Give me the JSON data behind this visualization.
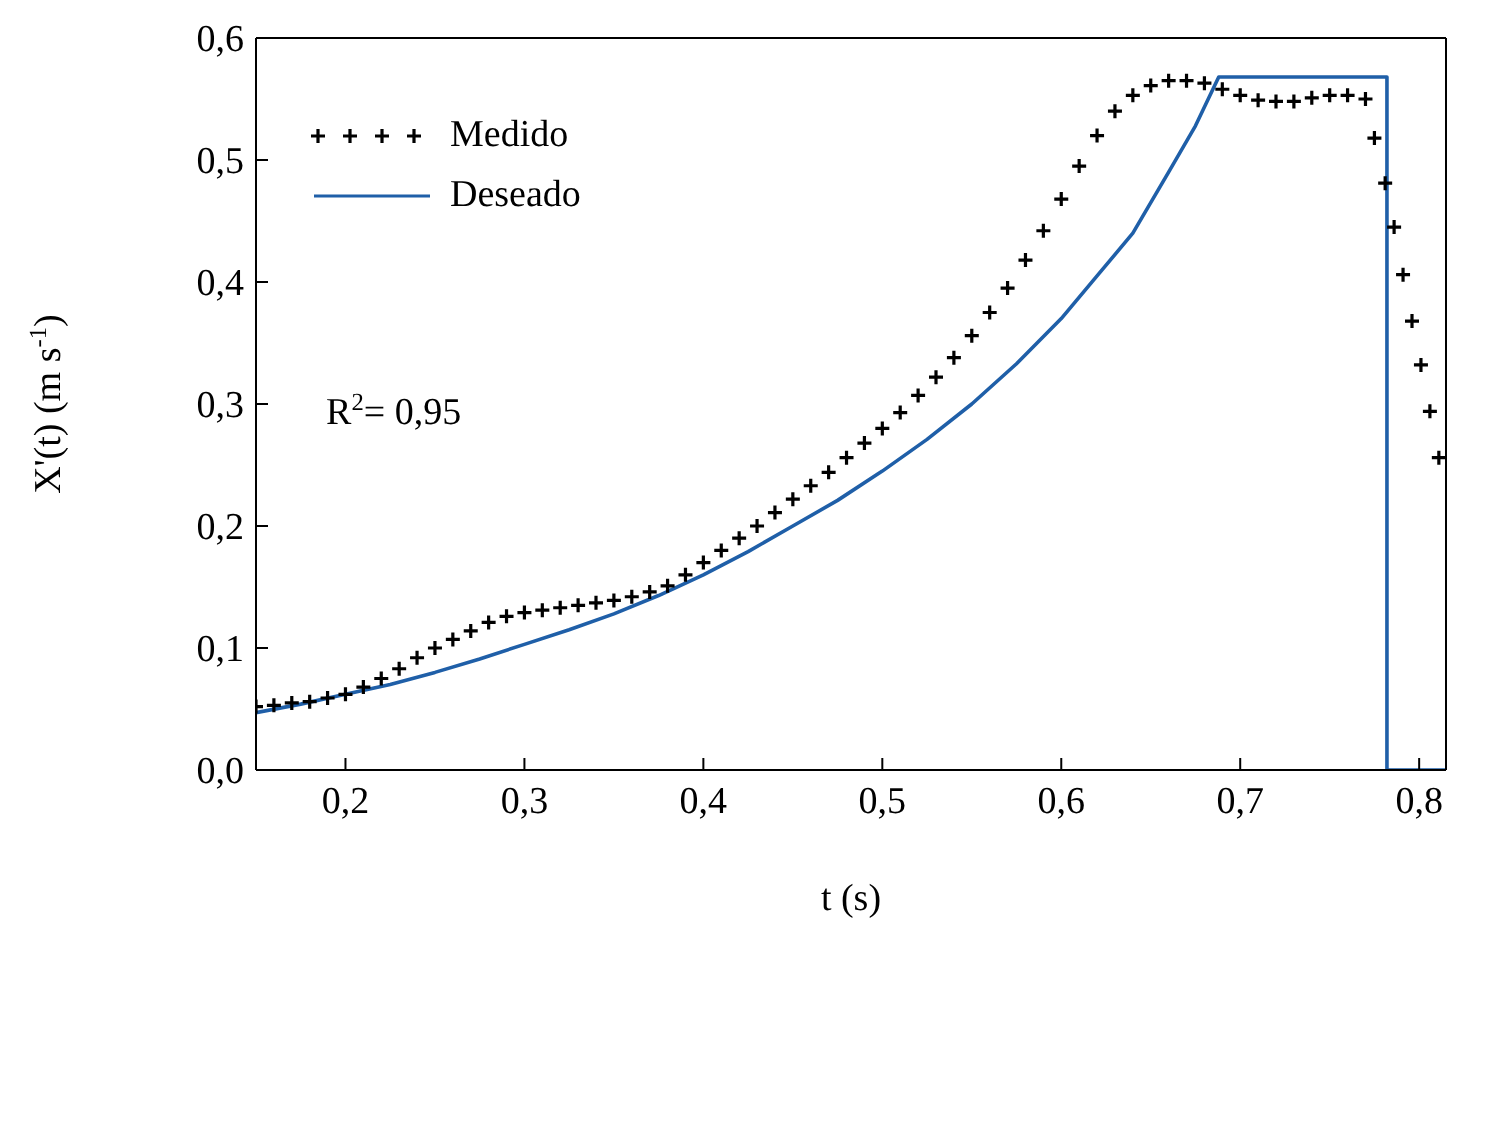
{
  "chart_data": {
    "type": "line",
    "xlabel": "t (s)",
    "ylabel": "X'(t) (m s$^{-1}$)",
    "annotations": [
      "R$^{2}$= 0,95"
    ],
    "xlim": [
      0.15,
      0.815
    ],
    "xticks": [
      {
        "value": 0.2,
        "label": "0,2"
      },
      {
        "value": 0.3,
        "label": "0,3"
      },
      {
        "value": 0.4,
        "label": "0,4"
      },
      {
        "value": 0.5,
        "label": "0,5"
      },
      {
        "value": 0.6,
        "label": "0,6"
      },
      {
        "value": 0.7,
        "label": "0,7"
      },
      {
        "value": 0.8,
        "label": "0,8"
      }
    ],
    "ylim": [
      0,
      0.6
    ],
    "yticks": [
      {
        "value": 0,
        "label": "0,0"
      },
      {
        "value": 0.1,
        "label": "0,1"
      },
      {
        "value": 0.2,
        "label": "0,2"
      },
      {
        "value": 0.3,
        "label": "0,3"
      },
      {
        "value": 0.4,
        "label": "0,4"
      },
      {
        "value": 0.5,
        "label": "0,5"
      },
      {
        "value": 0.6,
        "label": "0,6"
      }
    ],
    "grid": false,
    "legend": "top left",
    "series": [
      {
        "name": "Medido",
        "type": "scatter",
        "marker": "cross",
        "color": "#000000",
        "x": [
          0.15,
          0.16,
          0.17,
          0.18,
          0.19,
          0.2,
          0.21,
          0.22,
          0.23,
          0.24,
          0.25,
          0.26,
          0.27,
          0.28,
          0.29,
          0.3,
          0.31,
          0.32,
          0.33,
          0.34,
          0.35,
          0.36,
          0.37,
          0.38,
          0.39,
          0.4,
          0.41,
          0.42,
          0.43,
          0.44,
          0.45,
          0.46,
          0.47,
          0.48,
          0.49,
          0.5,
          0.51,
          0.52,
          0.53,
          0.54,
          0.55,
          0.56,
          0.57,
          0.58,
          0.59,
          0.6,
          0.61,
          0.62,
          0.63,
          0.64,
          0.65,
          0.66,
          0.67,
          0.68,
          0.69,
          0.7,
          0.71,
          0.72,
          0.73,
          0.74,
          0.75,
          0.76,
          0.77,
          0.775,
          0.781,
          0.786,
          0.791,
          0.796,
          0.801,
          0.806,
          0.811
        ],
        "values": [
          0.052,
          0.053,
          0.055,
          0.056,
          0.059,
          0.062,
          0.068,
          0.075,
          0.083,
          0.092,
          0.1,
          0.107,
          0.114,
          0.121,
          0.126,
          0.129,
          0.131,
          0.133,
          0.135,
          0.137,
          0.139,
          0.142,
          0.146,
          0.151,
          0.16,
          0.17,
          0.18,
          0.19,
          0.2,
          0.211,
          0.222,
          0.233,
          0.244,
          0.256,
          0.268,
          0.28,
          0.293,
          0.307,
          0.322,
          0.338,
          0.356,
          0.375,
          0.395,
          0.418,
          0.442,
          0.468,
          0.495,
          0.52,
          0.54,
          0.553,
          0.561,
          0.565,
          0.565,
          0.563,
          0.558,
          0.553,
          0.549,
          0.548,
          0.548,
          0.551,
          0.553,
          0.553,
          0.55,
          0.518,
          0.481,
          0.445,
          0.406,
          0.368,
          0.332,
          0.294,
          0.256
        ]
      },
      {
        "name": "Deseado",
        "marker": "none",
        "color": "#1f5fa8",
        "x": [
          0.15,
          0.175,
          0.2,
          0.225,
          0.25,
          0.275,
          0.3,
          0.325,
          0.35,
          0.375,
          0.4,
          0.425,
          0.45,
          0.475,
          0.5,
          0.525,
          0.55,
          0.575,
          0.6,
          0.62,
          0.64,
          0.66,
          0.675,
          0.688,
          0.782,
          0.782,
          0.815
        ],
        "values": [
          0.047,
          0.054,
          0.062,
          0.07,
          0.08,
          0.091,
          0.103,
          0.115,
          0.128,
          0.143,
          0.16,
          0.179,
          0.2,
          0.221,
          0.245,
          0.271,
          0.3,
          0.333,
          0.37,
          0.405,
          0.44,
          0.49,
          0.528,
          0.568,
          0.568,
          0,
          0
        ]
      }
    ]
  }
}
